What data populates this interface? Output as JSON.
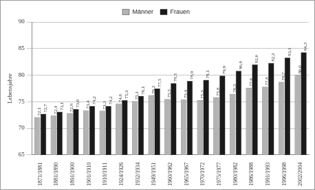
{
  "chart_data": {
    "type": "bar",
    "categories": [
      "1871/1881",
      "1881/1890",
      "1891/1900",
      "1901/1910",
      "1910/1911",
      "1924/1926",
      "1932/1934",
      "1949/1951",
      "1960/1962",
      "1965/1967",
      "1970/1972",
      "1975/1977",
      "1980/1982",
      "1986/1988",
      "1991/1993",
      "1996/1998",
      "2002/2004"
    ],
    "series": [
      {
        "name": "Männer",
        "color": "#b3b3b3",
        "values": [
          72.1,
          72.4,
          72.8,
          73.4,
          73.3,
          74.6,
          75.1,
          76.2,
          75.5,
          75.4,
          75.3,
          75.8,
          76.5,
          77.6,
          77.8,
          78.7,
          80.0
        ],
        "value_labels": [
          "72,1",
          "72,4",
          "72,8",
          "73,4",
          "73,3",
          "74,6",
          "75,1",
          "76,2",
          "75,5",
          "75,4",
          "75,3",
          "75,8",
          "76,5",
          "77,6",
          "77,8",
          "78,7",
          "80,0"
        ]
      },
      {
        "name": "Frauen",
        "color": "#1a1a1a",
        "values": [
          72.7,
          73.1,
          73.6,
          74.2,
          74.2,
          75.3,
          76.1,
          77.5,
          78.5,
          78.9,
          79.1,
          79.9,
          80.8,
          82.0,
          82.3,
          83.3,
          84.3
        ],
        "value_labels": [
          "72,7",
          "73,1",
          "73,6",
          "74,2",
          "74,2",
          "75,3",
          "76,1",
          "77,5",
          "78,5",
          "78,9",
          "79,1",
          "79,9",
          "80,8",
          "82,0",
          "82,3",
          "83,3",
          "84,3"
        ]
      }
    ],
    "y_label": "Lebensjahre",
    "ylim": [
      65,
      90
    ],
    "yticks": [
      65,
      70,
      75,
      80,
      85,
      90
    ],
    "grid": true,
    "legend": "top",
    "data_labels": true
  }
}
